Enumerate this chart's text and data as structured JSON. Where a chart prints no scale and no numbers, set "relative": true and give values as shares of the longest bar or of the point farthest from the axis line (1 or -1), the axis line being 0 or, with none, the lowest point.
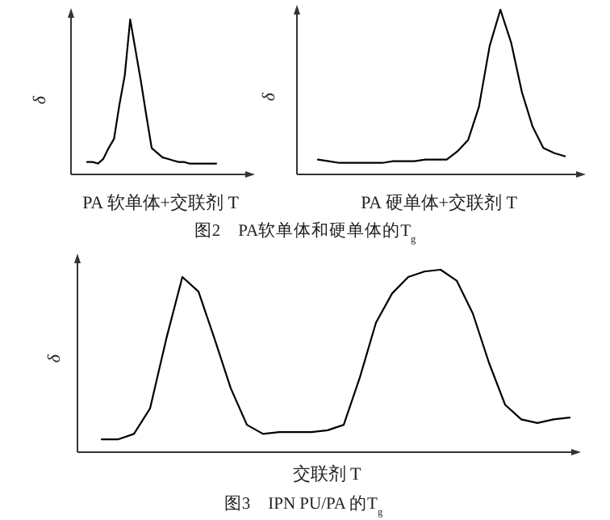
{
  "chart_data": [
    {
      "type": "line",
      "relative": true,
      "xlabel": "PA 软单体+交联剂 T",
      "ylabel": "δ",
      "annotations": [
        "图2　PA软单体和硬单体的T$_{g}$"
      ],
      "categories": [
        null,
        null,
        null,
        null,
        null,
        null,
        null,
        null,
        null,
        null,
        null,
        null,
        null,
        null,
        null,
        null,
        null,
        null,
        null,
        null,
        null,
        null,
        null,
        null,
        null
      ],
      "series": [
        {
          "color": "#000000",
          "values": [
            0.08,
            0.08,
            0.07,
            0.1,
            0.17,
            0.23,
            0.45,
            0.64,
            1.0,
            0.8,
            0.6,
            0.38,
            0.17,
            0.14,
            0.11,
            0.1,
            0.09,
            0.08,
            0.08,
            0.07,
            0.07,
            0.07,
            0.07,
            0.07,
            0.07
          ]
        }
      ]
    },
    {
      "type": "line",
      "relative": true,
      "xlabel": "PA 硬单体+交联剂 T",
      "ylabel": "δ",
      "categories": [
        null,
        null,
        null,
        null,
        null,
        null,
        null,
        null,
        null,
        null,
        null,
        null,
        null,
        null,
        null,
        null,
        null,
        null,
        null,
        null,
        null,
        null,
        null,
        null
      ],
      "series": [
        {
          "color": "#000000",
          "values": [
            0.09,
            0.08,
            0.07,
            0.07,
            0.07,
            0.07,
            0.07,
            0.08,
            0.08,
            0.08,
            0.09,
            0.09,
            0.09,
            0.14,
            0.21,
            0.41,
            0.78,
            1.0,
            0.8,
            0.5,
            0.29,
            0.16,
            0.13,
            0.11
          ]
        }
      ]
    },
    {
      "type": "line",
      "relative": true,
      "xlabel": "交联剂 T",
      "ylabel": "δ",
      "annotations": [
        "图3　IPN PU/PA 的T$_{g}$"
      ],
      "categories": [
        null,
        null,
        null,
        null,
        null,
        null,
        null,
        null,
        null,
        null,
        null,
        null,
        null,
        null,
        null,
        null,
        null,
        null,
        null,
        null,
        null,
        null,
        null,
        null,
        null,
        null,
        null,
        null,
        null,
        null
      ],
      "series": [
        {
          "color": "#000000",
          "values": [
            0.07,
            0.07,
            0.1,
            0.24,
            0.62,
            0.96,
            0.88,
            0.62,
            0.35,
            0.15,
            0.1,
            0.11,
            0.11,
            0.11,
            0.12,
            0.15,
            0.41,
            0.71,
            0.87,
            0.96,
            0.99,
            1.0,
            0.94,
            0.76,
            0.49,
            0.26,
            0.18,
            0.16,
            0.18,
            0.19
          ]
        }
      ]
    }
  ]
}
